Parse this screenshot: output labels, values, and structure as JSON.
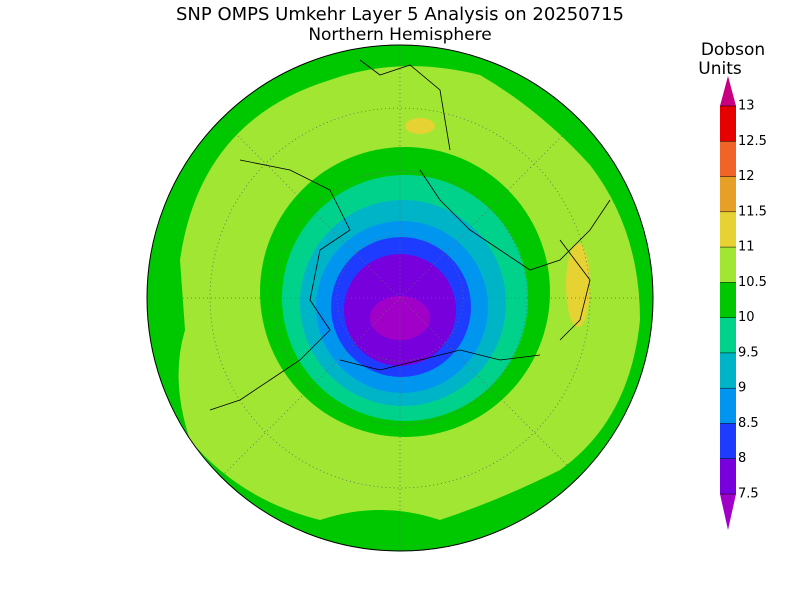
{
  "title": "SNP OMPS Umkehr Layer 5 Analysis on 20250715",
  "subtitle": "Northern Hemisphere",
  "colorbar": {
    "label_lines": [
      "Dobson",
      "Units"
    ],
    "ticks": [
      7.5,
      8,
      8.5,
      9,
      9.5,
      10,
      10.5,
      11,
      11.5,
      12,
      12.5,
      13
    ],
    "colors": [
      "#a000c8",
      "#7800dc",
      "#1e3cff",
      "#0096f0",
      "#00b4c8",
      "#00d28c",
      "#00c800",
      "#a0e632",
      "#e6d232",
      "#e6a028",
      "#f06428",
      "#e60000",
      "#c8007f"
    ]
  }
}
